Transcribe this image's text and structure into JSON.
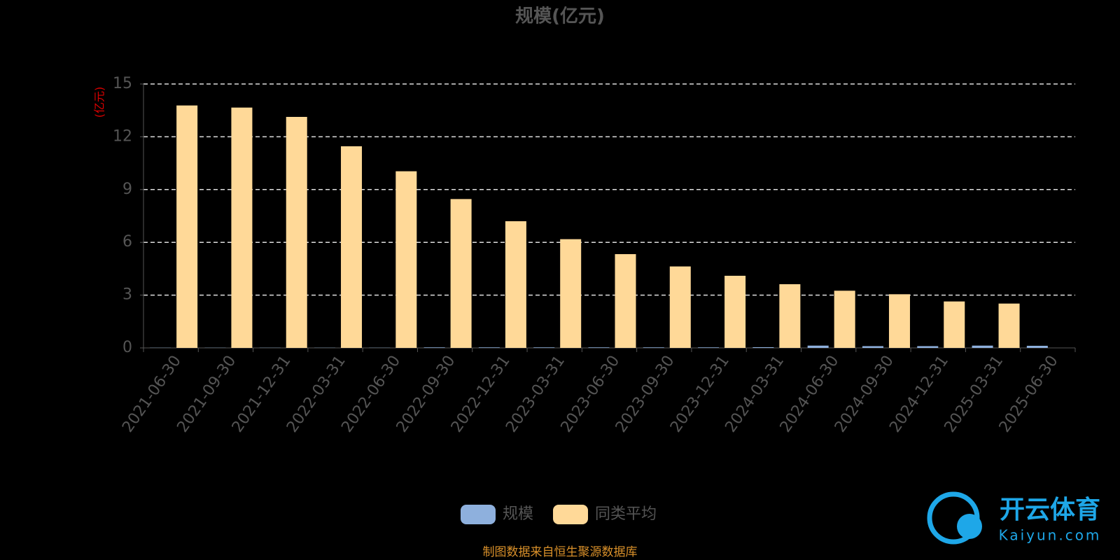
{
  "chart_data": {
    "type": "bar",
    "title": "规模(亿元)",
    "y_axis_label": "(亿元)",
    "categories": [
      "2021-06-30",
      "2021-09-30",
      "2021-12-31",
      "2022-03-31",
      "2022-06-30",
      "2022-09-30",
      "2022-12-31",
      "2023-03-31",
      "2023-06-30",
      "2023-09-30",
      "2023-12-31",
      "2024-03-31",
      "2024-06-30",
      "2024-09-30",
      "2024-12-31",
      "2025-03-31",
      "2025-06-30"
    ],
    "series": [
      {
        "name": "规模",
        "color": "#8eb0dd",
        "values": [
          0.01,
          0.01,
          0.01,
          0.01,
          0.01,
          0.03,
          0.03,
          0.03,
          0.03,
          0.03,
          0.03,
          0.04,
          0.13,
          0.1,
          0.1,
          0.13,
          0.12
        ]
      },
      {
        "name": "同类平均",
        "color": "#ffd998",
        "values": [
          13.78,
          13.66,
          13.13,
          11.46,
          10.04,
          8.46,
          7.2,
          6.18,
          5.33,
          4.63,
          4.1,
          3.62,
          3.25,
          3.05,
          2.64,
          2.52,
          null
        ]
      }
    ],
    "ylim": [
      0,
      15
    ],
    "yticks": [
      0,
      3,
      6,
      9,
      12,
      15
    ],
    "grid": true,
    "legend": "bottom"
  },
  "footer": "制图数据来自恒生聚源数据库",
  "watermark": {
    "brand": "开云体育",
    "site": "Kaiyun.com"
  }
}
